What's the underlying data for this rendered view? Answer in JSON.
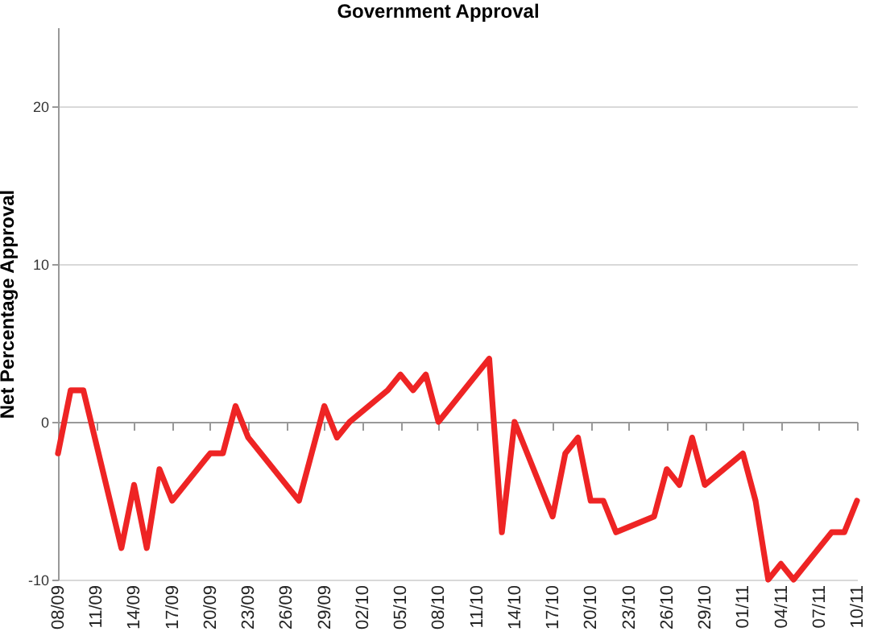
{
  "chart_data": {
    "type": "line",
    "title": "Government Approval",
    "ylabel": "Net Percentage Approval",
    "x": [
      "--09-08",
      "--09-09",
      "--09-10",
      "--09-13",
      "--09-14",
      "--09-15",
      "--09-16",
      "--09-17",
      "--09-20",
      "--09-21",
      "--09-22",
      "--09-23",
      "--09-27",
      "--09-29",
      "--09-30",
      "--10-01",
      "--10-04",
      "--10-05",
      "--10-06",
      "--10-07",
      "--10-08",
      "--10-12",
      "--10-13",
      "--10-14",
      "--10-17",
      "--10-18",
      "--10-19",
      "--10-20",
      "--10-21",
      "--10-22",
      "--10-25",
      "--10-26",
      "--10-27",
      "--10-28",
      "--10-29",
      "--11-01",
      "--11-02",
      "--11-03",
      "--11-04",
      "--11-05",
      "--11-08",
      "--11-09",
      "--11-10"
    ],
    "series": [
      {
        "color": "#ee2424",
        "values": [
          -2,
          2,
          2,
          -8,
          -4,
          -8,
          -3,
          -5,
          -2,
          -2,
          1,
          -1,
          -5,
          1,
          -1,
          0,
          2,
          3,
          2,
          3,
          0,
          4,
          -7,
          0,
          -6,
          -2,
          -1,
          -5,
          -5,
          -7,
          -6,
          -3,
          -4,
          -1,
          -4,
          -2,
          -5,
          -10,
          -9,
          -10,
          -7,
          -7,
          -5
        ]
      }
    ],
    "xlim": [
      "--09-08",
      "--11-10"
    ],
    "xticks": [
      {
        "value": "--09-08",
        "label": "08/09"
      },
      {
        "value": "--09-11",
        "label": "11/09"
      },
      {
        "value": "--09-14",
        "label": "14/09"
      },
      {
        "value": "--09-17",
        "label": "17/09"
      },
      {
        "value": "--09-20",
        "label": "20/09"
      },
      {
        "value": "--09-23",
        "label": "23/09"
      },
      {
        "value": "--09-26",
        "label": "26/09"
      },
      {
        "value": "--09-29",
        "label": "29/09"
      },
      {
        "value": "--10-02",
        "label": "02/10"
      },
      {
        "value": "--10-05",
        "label": "05/10"
      },
      {
        "value": "--10-08",
        "label": "08/10"
      },
      {
        "value": "--10-11",
        "label": "11/10"
      },
      {
        "value": "--10-14",
        "label": "14/10"
      },
      {
        "value": "--10-17",
        "label": "17/10"
      },
      {
        "value": "--10-20",
        "label": "20/10"
      },
      {
        "value": "--10-23",
        "label": "23/10"
      },
      {
        "value": "--10-26",
        "label": "26/10"
      },
      {
        "value": "--10-29",
        "label": "29/10"
      },
      {
        "value": "--11-01",
        "label": "01/11"
      },
      {
        "value": "--11-04",
        "label": "04/11"
      },
      {
        "value": "--11-07",
        "label": "07/11"
      },
      {
        "value": "--11-10",
        "label": "10/11"
      }
    ],
    "ylim": [
      -10,
      25
    ],
    "yticks": [
      -10,
      0,
      10,
      20
    ],
    "grid": "y",
    "line_style": "solid"
  }
}
